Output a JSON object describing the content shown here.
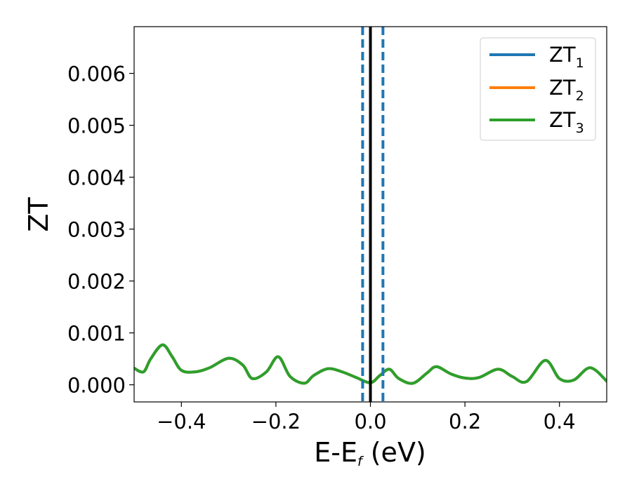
{
  "chart_data": {
    "type": "line",
    "xlabel": {
      "main": "E-E",
      "subscript": "f",
      "suffix": " (eV)"
    },
    "ylabel": "ZT",
    "xlim": [
      -0.5,
      0.5
    ],
    "ylim": [
      -0.00033,
      0.0069
    ],
    "xticks": [
      -0.4,
      -0.2,
      0.0,
      0.2,
      0.4
    ],
    "xtick_labels": [
      "−0.4",
      "−0.2",
      "0.0",
      "0.2",
      "0.4"
    ],
    "yticks": [
      0.0,
      0.001,
      0.002,
      0.003,
      0.004,
      0.005,
      0.006
    ],
    "ytick_labels": [
      "0.000",
      "0.001",
      "0.002",
      "0.003",
      "0.004",
      "0.005",
      "0.006"
    ],
    "grid": false,
    "legend_position": "top-right",
    "series": [
      {
        "name": "ZT",
        "subscript": "1",
        "color": "#1f77b4",
        "x": [
          -0.5,
          -0.48,
          -0.465,
          -0.44,
          -0.42,
          -0.4,
          -0.37,
          -0.34,
          -0.3,
          -0.27,
          -0.25,
          -0.22,
          -0.195,
          -0.17,
          -0.14,
          -0.12,
          -0.09,
          -0.06,
          -0.03,
          0.0,
          0.02,
          0.04,
          0.06,
          0.09,
          0.12,
          0.14,
          0.17,
          0.2,
          0.23,
          0.27,
          0.3,
          0.33,
          0.37,
          0.4,
          0.43,
          0.465,
          0.5
        ],
        "y": [
          0.00032,
          0.00025,
          0.0005,
          0.00077,
          0.00055,
          0.00028,
          0.00025,
          0.00033,
          0.00051,
          0.00038,
          0.00012,
          0.00025,
          0.00054,
          0.00016,
          3e-05,
          0.00018,
          0.00031,
          0.00025,
          0.00014,
          4e-05,
          0.00018,
          0.0003,
          0.00012,
          3e-05,
          0.00023,
          0.00035,
          0.00021,
          0.00013,
          0.00014,
          0.0003,
          0.00016,
          6e-05,
          0.00047,
          0.00012,
          9e-05,
          0.00033,
          7e-05
        ]
      },
      {
        "name": "ZT",
        "subscript": "2",
        "color": "#ff7f0e",
        "x": [
          -0.5,
          -0.48,
          -0.465,
          -0.44,
          -0.42,
          -0.4,
          -0.37,
          -0.34,
          -0.3,
          -0.27,
          -0.25,
          -0.22,
          -0.195,
          -0.17,
          -0.14,
          -0.12,
          -0.09,
          -0.06,
          -0.03,
          0.0,
          0.02,
          0.04,
          0.06,
          0.09,
          0.12,
          0.14,
          0.17,
          0.2,
          0.23,
          0.27,
          0.3,
          0.33,
          0.37,
          0.4,
          0.43,
          0.465,
          0.5
        ],
        "y": [
          0.00032,
          0.00025,
          0.0005,
          0.00077,
          0.00055,
          0.00028,
          0.00025,
          0.00033,
          0.00051,
          0.00038,
          0.00012,
          0.00025,
          0.00054,
          0.00016,
          3e-05,
          0.00018,
          0.00031,
          0.00025,
          0.00014,
          4e-05,
          0.00018,
          0.0003,
          0.00012,
          3e-05,
          0.00023,
          0.00035,
          0.00021,
          0.00013,
          0.00014,
          0.0003,
          0.00016,
          6e-05,
          0.00047,
          0.00012,
          9e-05,
          0.00033,
          7e-05
        ]
      },
      {
        "name": "ZT",
        "subscript": "3",
        "color": "#2ca02c",
        "x": [
          -0.5,
          -0.48,
          -0.465,
          -0.44,
          -0.42,
          -0.4,
          -0.37,
          -0.34,
          -0.3,
          -0.27,
          -0.25,
          -0.22,
          -0.195,
          -0.17,
          -0.14,
          -0.12,
          -0.09,
          -0.06,
          -0.03,
          0.0,
          0.02,
          0.04,
          0.06,
          0.09,
          0.12,
          0.14,
          0.17,
          0.2,
          0.23,
          0.27,
          0.3,
          0.33,
          0.37,
          0.4,
          0.43,
          0.465,
          0.5
        ],
        "y": [
          0.00032,
          0.00025,
          0.0005,
          0.00077,
          0.00055,
          0.00028,
          0.00025,
          0.00033,
          0.00051,
          0.00038,
          0.00012,
          0.00025,
          0.00054,
          0.00016,
          3e-05,
          0.00018,
          0.00031,
          0.00025,
          0.00014,
          4e-05,
          0.00018,
          0.0003,
          0.00012,
          3e-05,
          0.00023,
          0.00035,
          0.00021,
          0.00013,
          0.00014,
          0.0003,
          0.00016,
          6e-05,
          0.00047,
          0.00012,
          9e-05,
          0.00033,
          7e-05
        ]
      }
    ],
    "vertical_lines": [
      {
        "x": 0.0,
        "color": "#000000",
        "style": "solid"
      },
      {
        "x": -0.0165,
        "color": "#1f77b4",
        "style": "dashed"
      },
      {
        "x": 0.0265,
        "color": "#1f77b4",
        "style": "dashed"
      }
    ]
  }
}
